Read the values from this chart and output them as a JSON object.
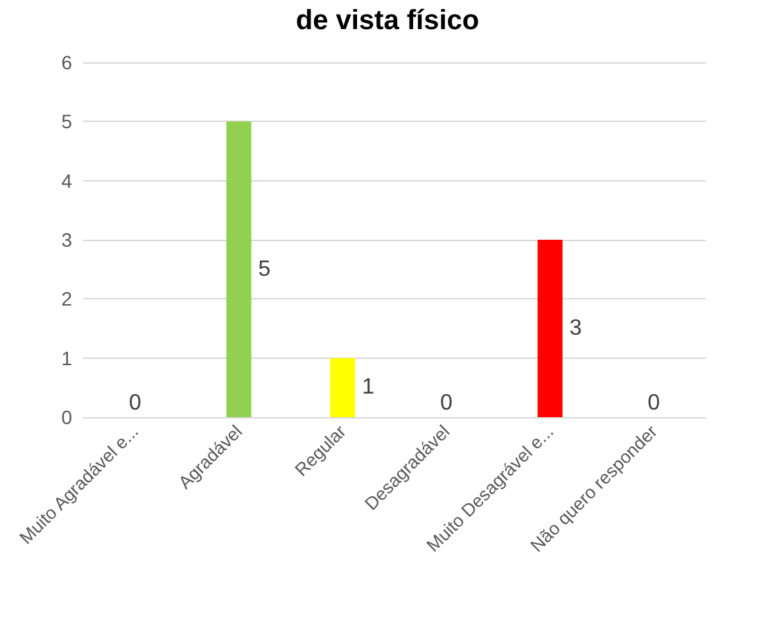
{
  "chart_data": {
    "type": "bar",
    "title": "de vista físico",
    "categories": [
      "Muito Agradável e...",
      "Agradável",
      "Regular",
      "Desagradável",
      "Muito Desagrável e...",
      "Não quero responder"
    ],
    "values": [
      0,
      5,
      1,
      0,
      3,
      0
    ],
    "colors": [
      "#5b9bd5",
      "#92d050",
      "#ffff00",
      "#f4b183",
      "#ff0000",
      "#a5a5a5"
    ],
    "ylim": [
      0,
      6
    ],
    "yticks": [
      0,
      1,
      2,
      3,
      4,
      5,
      6
    ],
    "grid": "y",
    "data_labels": true
  }
}
